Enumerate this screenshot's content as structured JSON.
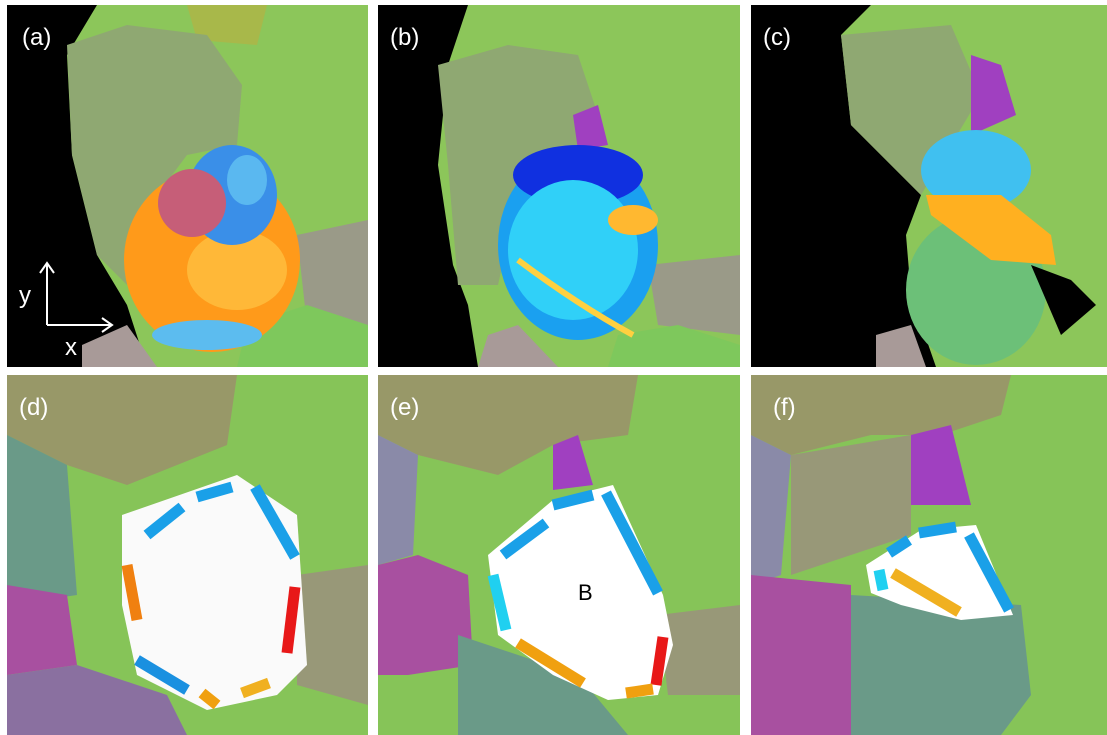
{
  "panels": [
    {
      "label": "(a)"
    },
    {
      "label": "(b)"
    },
    {
      "label": "(c)"
    },
    {
      "label": "(d)"
    },
    {
      "label": "(e)",
      "annotation": "B"
    },
    {
      "label": "(f)"
    }
  ],
  "axes": {
    "y": "y",
    "x": "x"
  }
}
